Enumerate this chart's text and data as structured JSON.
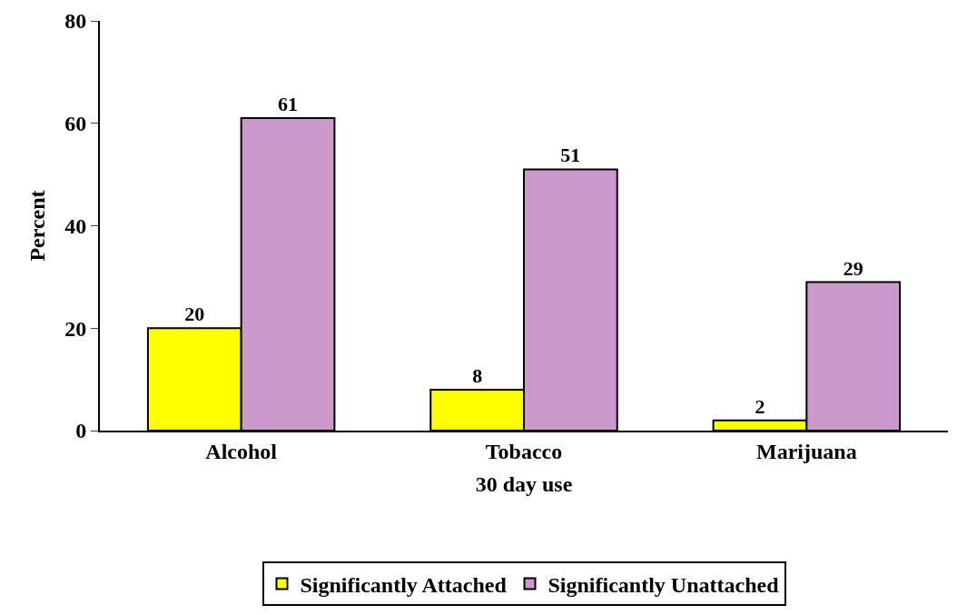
{
  "chart_data": {
    "type": "bar",
    "xlabel": "30 day use",
    "ylabel": "Percent",
    "categories": [
      "Alcohol",
      "Tobacco",
      "Marijuana"
    ],
    "series": [
      {
        "name": "Significantly Attached",
        "color": "#ffff00",
        "values": [
          20,
          8,
          2
        ]
      },
      {
        "name": "Significantly Unattached",
        "color": "#cc99cc",
        "values": [
          61,
          51,
          29
        ]
      }
    ],
    "ylim": [
      0,
      80
    ],
    "yticks": [
      0,
      20,
      40,
      60,
      80
    ],
    "data_labels": true,
    "legend": "bottom"
  }
}
